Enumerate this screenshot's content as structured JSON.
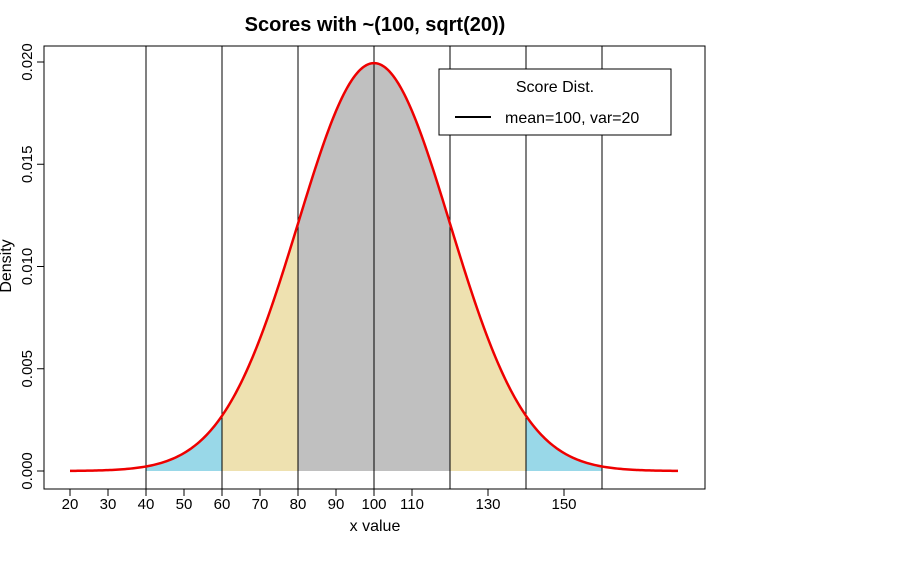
{
  "chart_data": {
    "type": "area",
    "title": "Scores with ~(100, sqrt(20))",
    "xlabel": "x value",
    "ylabel": "Density",
    "x_ticks": [
      20,
      30,
      40,
      50,
      60,
      70,
      80,
      90,
      100,
      110,
      130,
      150
    ],
    "y_ticks": [
      "0.000",
      "0.005",
      "0.010",
      "0.015",
      "0.020"
    ],
    "xlim": [
      20,
      180
    ],
    "ylim": [
      0,
      0.02
    ],
    "mean": 100,
    "sd": 20,
    "vertical_lines": [
      40,
      60,
      80,
      100,
      120,
      140,
      160
    ],
    "shaded_regions": [
      {
        "from": 40,
        "to": 60,
        "color": "#99d8e8"
      },
      {
        "from": 60,
        "to": 80,
        "color": "#eee1b0"
      },
      {
        "from": 80,
        "to": 120,
        "color": "#c0c0c0"
      },
      {
        "from": 120,
        "to": 140,
        "color": "#eee1b0"
      },
      {
        "from": 140,
        "to": 160,
        "color": "#99d8e8"
      }
    ],
    "series": [
      {
        "name": "mean=100, var=20",
        "color": "#ee0000"
      }
    ],
    "legend": {
      "title": "Score Dist.",
      "entry": "mean=100, var=20",
      "placement": "top-right"
    },
    "grid": false
  }
}
